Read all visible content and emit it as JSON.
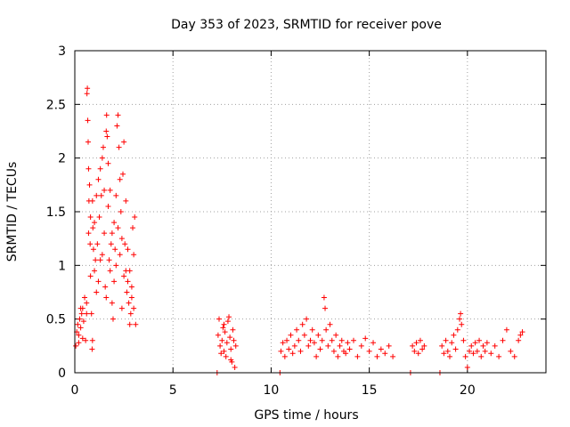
{
  "chart_data": {
    "type": "scatter",
    "title": "Day 353 of 2023, SRMTID for receiver pove",
    "xlabel": "GPS time / hours",
    "ylabel": "SRMTID / TECUs",
    "xlim": [
      0,
      24
    ],
    "ylim": [
      0,
      3
    ],
    "xticks": [
      0,
      5,
      10,
      15,
      20
    ],
    "yticks": [
      0,
      0.5,
      1,
      1.5,
      2,
      2.5,
      3
    ],
    "grid": true,
    "marker": "+",
    "color": "#ff0000",
    "series": [
      {
        "name": "pove",
        "points": [
          [
            0.05,
            0.25
          ],
          [
            0.1,
            0.38
          ],
          [
            0.15,
            0.45
          ],
          [
            0.2,
            0.35
          ],
          [
            0.25,
            0.5
          ],
          [
            0.3,
            0.42
          ],
          [
            0.35,
            0.55
          ],
          [
            0.4,
            0.6
          ],
          [
            0.45,
            0.48
          ],
          [
            0.5,
            0.7
          ],
          [
            0.55,
            0.3
          ],
          [
            0.6,
            0.65
          ],
          [
            0.62,
            2.6
          ],
          [
            0.64,
            2.65
          ],
          [
            0.66,
            2.35
          ],
          [
            0.68,
            2.15
          ],
          [
            0.7,
            1.9
          ],
          [
            0.72,
            1.6
          ],
          [
            0.75,
            1.75
          ],
          [
            0.78,
            1.2
          ],
          [
            0.8,
            0.9
          ],
          [
            0.85,
            0.55
          ],
          [
            0.88,
            0.22
          ],
          [
            0.9,
            0.3
          ],
          [
            0.92,
            1.35
          ],
          [
            0.95,
            1.15
          ],
          [
            1.0,
            0.95
          ],
          [
            1.05,
            1.05
          ],
          [
            1.1,
            0.75
          ],
          [
            1.15,
            1.2
          ],
          [
            1.2,
            1.8
          ],
          [
            1.25,
            1.45
          ],
          [
            1.3,
            1.9
          ],
          [
            1.35,
            1.65
          ],
          [
            1.4,
            2.0
          ],
          [
            1.45,
            2.1
          ],
          [
            1.5,
            1.3
          ],
          [
            1.55,
            0.8
          ],
          [
            1.6,
            2.25
          ],
          [
            1.62,
            2.4
          ],
          [
            1.65,
            2.2
          ],
          [
            1.7,
            1.55
          ],
          [
            1.75,
            1.05
          ],
          [
            1.8,
            0.95
          ],
          [
            1.85,
            1.2
          ],
          [
            1.9,
            0.65
          ],
          [
            1.95,
            0.5
          ],
          [
            2.0,
            1.4
          ],
          [
            2.05,
            1.15
          ],
          [
            2.1,
            1.0
          ],
          [
            2.15,
            2.3
          ],
          [
            2.2,
            2.4
          ],
          [
            2.25,
            2.1
          ],
          [
            2.3,
            1.8
          ],
          [
            2.35,
            1.5
          ],
          [
            2.4,
            1.25
          ],
          [
            2.45,
            1.85
          ],
          [
            2.5,
            2.15
          ],
          [
            2.55,
            1.2
          ],
          [
            2.6,
            0.95
          ],
          [
            2.65,
            0.75
          ],
          [
            2.7,
            0.85
          ],
          [
            2.75,
            0.65
          ],
          [
            2.8,
            0.95
          ],
          [
            2.85,
            0.55
          ],
          [
            2.9,
            0.8
          ],
          [
            2.95,
            1.35
          ],
          [
            3.0,
            1.1
          ],
          [
            3.05,
            1.45
          ],
          [
            3.1,
            0.45
          ],
          [
            0.3,
            0.6
          ],
          [
            0.6,
            0.55
          ],
          [
            0.7,
            1.3
          ],
          [
            0.9,
            1.6
          ],
          [
            1.0,
            1.4
          ],
          [
            1.1,
            1.65
          ],
          [
            1.3,
            1.05
          ],
          [
            1.5,
            1.7
          ],
          [
            1.7,
            1.95
          ],
          [
            1.9,
            1.3
          ],
          [
            2.1,
            1.65
          ],
          [
            2.3,
            1.1
          ],
          [
            2.5,
            0.9
          ],
          [
            2.7,
            1.15
          ],
          [
            2.9,
            0.7
          ],
          [
            3.0,
            0.6
          ],
          [
            0.2,
            0.28
          ],
          [
            0.4,
            0.32
          ],
          [
            0.8,
            1.45
          ],
          [
            1.2,
            0.85
          ],
          [
            1.4,
            1.1
          ],
          [
            1.6,
            0.7
          ],
          [
            1.8,
            1.7
          ],
          [
            2.0,
            0.85
          ],
          [
            2.2,
            1.35
          ],
          [
            2.4,
            0.6
          ],
          [
            2.6,
            1.6
          ],
          [
            2.8,
            0.45
          ],
          [
            7.25,
            0.0
          ],
          [
            7.3,
            0.35
          ],
          [
            7.35,
            0.5
          ],
          [
            7.4,
            0.25
          ],
          [
            7.5,
            0.3
          ],
          [
            7.55,
            0.42
          ],
          [
            7.6,
            0.2
          ],
          [
            7.65,
            0.38
          ],
          [
            7.7,
            0.15
          ],
          [
            7.75,
            0.28
          ],
          [
            7.8,
            0.48
          ],
          [
            7.85,
            0.52
          ],
          [
            7.9,
            0.33
          ],
          [
            7.95,
            0.22
          ],
          [
            8.0,
            0.1
          ],
          [
            8.05,
            0.4
          ],
          [
            8.1,
            0.3
          ],
          [
            8.15,
            0.05
          ],
          [
            8.2,
            0.25
          ],
          [
            7.45,
            0.18
          ],
          [
            7.6,
            0.45
          ],
          [
            7.95,
            0.12
          ],
          [
            10.45,
            0.0
          ],
          [
            10.5,
            0.2
          ],
          [
            10.6,
            0.28
          ],
          [
            10.7,
            0.15
          ],
          [
            10.8,
            0.3
          ],
          [
            10.9,
            0.22
          ],
          [
            11.0,
            0.35
          ],
          [
            11.1,
            0.18
          ],
          [
            11.2,
            0.25
          ],
          [
            11.3,
            0.4
          ],
          [
            11.4,
            0.3
          ],
          [
            11.5,
            0.2
          ],
          [
            11.6,
            0.45
          ],
          [
            11.7,
            0.35
          ],
          [
            11.8,
            0.5
          ],
          [
            11.9,
            0.25
          ],
          [
            12.0,
            0.3
          ],
          [
            12.1,
            0.4
          ],
          [
            12.2,
            0.28
          ],
          [
            12.3,
            0.15
          ],
          [
            12.4,
            0.35
          ],
          [
            12.5,
            0.22
          ],
          [
            12.6,
            0.3
          ],
          [
            12.7,
            0.7
          ],
          [
            12.75,
            0.6
          ],
          [
            12.8,
            0.4
          ],
          [
            12.9,
            0.25
          ],
          [
            13.0,
            0.45
          ],
          [
            13.1,
            0.3
          ],
          [
            13.2,
            0.2
          ],
          [
            13.3,
            0.35
          ],
          [
            13.4,
            0.15
          ],
          [
            13.5,
            0.25
          ],
          [
            13.6,
            0.3
          ],
          [
            13.7,
            0.2
          ],
          [
            13.8,
            0.18
          ],
          [
            13.9,
            0.28
          ],
          [
            14.0,
            0.22
          ],
          [
            14.2,
            0.3
          ],
          [
            14.4,
            0.15
          ],
          [
            14.6,
            0.25
          ],
          [
            14.8,
            0.32
          ],
          [
            15.0,
            0.2
          ],
          [
            15.2,
            0.28
          ],
          [
            15.4,
            0.15
          ],
          [
            15.6,
            0.22
          ],
          [
            15.8,
            0.18
          ],
          [
            16.0,
            0.25
          ],
          [
            16.2,
            0.15
          ],
          [
            17.1,
            0.0
          ],
          [
            17.2,
            0.25
          ],
          [
            17.3,
            0.2
          ],
          [
            17.4,
            0.28
          ],
          [
            17.5,
            0.18
          ],
          [
            17.6,
            0.3
          ],
          [
            17.7,
            0.22
          ],
          [
            17.8,
            0.25
          ],
          [
            18.6,
            0.0
          ],
          [
            18.7,
            0.25
          ],
          [
            18.8,
            0.18
          ],
          [
            18.9,
            0.3
          ],
          [
            19.0,
            0.2
          ],
          [
            19.1,
            0.15
          ],
          [
            19.2,
            0.28
          ],
          [
            19.3,
            0.35
          ],
          [
            19.4,
            0.22
          ],
          [
            19.5,
            0.4
          ],
          [
            19.6,
            0.5
          ],
          [
            19.65,
            0.55
          ],
          [
            19.7,
            0.45
          ],
          [
            19.8,
            0.3
          ],
          [
            19.9,
            0.15
          ],
          [
            20.0,
            0.05
          ],
          [
            20.1,
            0.2
          ],
          [
            20.2,
            0.25
          ],
          [
            20.3,
            0.18
          ],
          [
            20.4,
            0.28
          ],
          [
            20.5,
            0.2
          ],
          [
            20.6,
            0.3
          ],
          [
            20.7,
            0.15
          ],
          [
            20.8,
            0.25
          ],
          [
            20.9,
            0.2
          ],
          [
            21.0,
            0.28
          ],
          [
            21.2,
            0.18
          ],
          [
            21.4,
            0.25
          ],
          [
            21.6,
            0.15
          ],
          [
            21.8,
            0.3
          ],
          [
            22.0,
            0.4
          ],
          [
            22.2,
            0.2
          ],
          [
            22.4,
            0.15
          ],
          [
            22.6,
            0.3
          ],
          [
            22.7,
            0.35
          ],
          [
            22.8,
            0.38
          ]
        ]
      }
    ]
  }
}
